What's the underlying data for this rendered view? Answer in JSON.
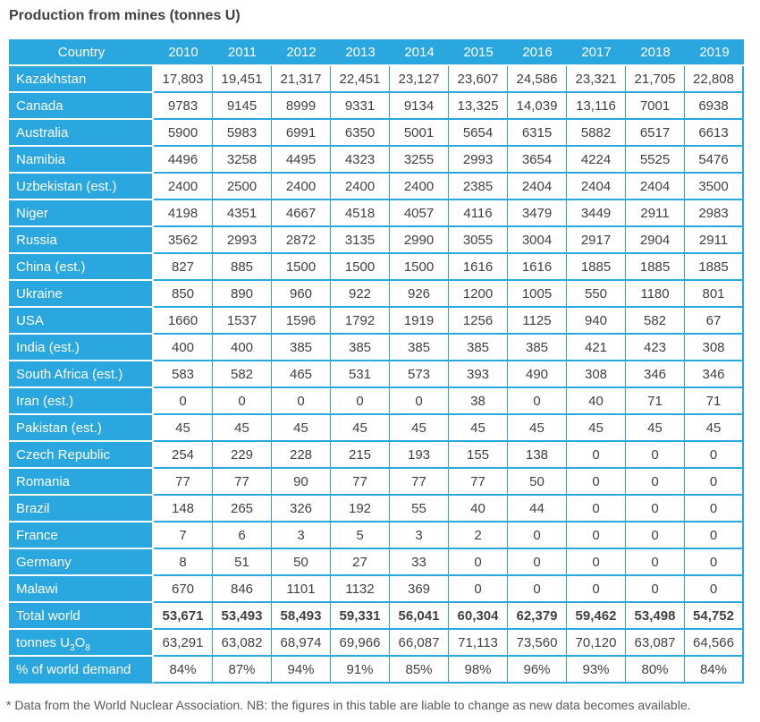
{
  "title": "Production from mines (tonnes U)",
  "footnote": "* Data from the World Nuclear Association. NB: the figures in this table are liable to change as new data becomes available.",
  "colors": {
    "accent_blue": "#2BA7DF",
    "header_text": "#FFFFFF",
    "body_text": "#414042",
    "footnote_text": "#58595B",
    "background": "#FFFFFF"
  },
  "chart_data": {
    "type": "table",
    "title": "Production from mines (tonnes U)",
    "unit": "tonnes U",
    "columns": [
      "Country",
      "2010",
      "2011",
      "2012",
      "2013",
      "2014",
      "2015",
      "2016",
      "2017",
      "2018",
      "2019"
    ],
    "rows": [
      {
        "label": "Kazakhstan",
        "values": [
          "17,803",
          "19,451",
          "21,317",
          "22,451",
          "23,127",
          "23,607",
          "24,586",
          "23,321",
          "21,705",
          "22,808"
        ]
      },
      {
        "label": "Canada",
        "values": [
          "9783",
          "9145",
          "8999",
          "9331",
          "9134",
          "13,325",
          "14,039",
          "13,116",
          "7001",
          "6938"
        ]
      },
      {
        "label": "Australia",
        "values": [
          "5900",
          "5983",
          "6991",
          "6350",
          "5001",
          "5654",
          "6315",
          "5882",
          "6517",
          "6613"
        ]
      },
      {
        "label": "Namibia",
        "values": [
          "4496",
          "3258",
          "4495",
          "4323",
          "3255",
          "2993",
          "3654",
          "4224",
          "5525",
          "5476"
        ]
      },
      {
        "label": "Uzbekistan (est.)",
        "values": [
          "2400",
          "2500",
          "2400",
          "2400",
          "2400",
          "2385",
          "2404",
          "2404",
          "2404",
          "3500"
        ]
      },
      {
        "label": "Niger",
        "values": [
          "4198",
          "4351",
          "4667",
          "4518",
          "4057",
          "4116",
          "3479",
          "3449",
          "2911",
          "2983"
        ]
      },
      {
        "label": "Russia",
        "values": [
          "3562",
          "2993",
          "2872",
          "3135",
          "2990",
          "3055",
          "3004",
          "2917",
          "2904",
          "2911"
        ]
      },
      {
        "label": "China (est.)",
        "values": [
          "827",
          "885",
          "1500",
          "1500",
          "1500",
          "1616",
          "1616",
          "1885",
          "1885",
          "1885"
        ]
      },
      {
        "label": "Ukraine",
        "values": [
          "850",
          "890",
          "960",
          "922",
          "926",
          "1200",
          "1005",
          "550",
          "1180",
          "801"
        ]
      },
      {
        "label": "USA",
        "values": [
          "1660",
          "1537",
          "1596",
          "1792",
          "1919",
          "1256",
          "1125",
          "940",
          "582",
          "67"
        ]
      },
      {
        "label": "India (est.)",
        "values": [
          "400",
          "400",
          "385",
          "385",
          "385",
          "385",
          "385",
          "421",
          "423",
          "308"
        ]
      },
      {
        "label": "South Africa (est.)",
        "values": [
          "583",
          "582",
          "465",
          "531",
          "573",
          "393",
          "490",
          "308",
          "346",
          "346"
        ]
      },
      {
        "label": "Iran (est.)",
        "values": [
          "0",
          "0",
          "0",
          "0",
          "0",
          "38",
          "0",
          "40",
          "71",
          "71"
        ]
      },
      {
        "label": "Pakistan (est.)",
        "values": [
          "45",
          "45",
          "45",
          "45",
          "45",
          "45",
          "45",
          "45",
          "45",
          "45"
        ]
      },
      {
        "label": "Czech Republic",
        "values": [
          "254",
          "229",
          "228",
          "215",
          "193",
          "155",
          "138",
          "0",
          "0",
          "0"
        ]
      },
      {
        "label": "Romania",
        "values": [
          "77",
          "77",
          "90",
          "77",
          "77",
          "77",
          "50",
          "0",
          "0",
          "0"
        ]
      },
      {
        "label": "Brazil",
        "values": [
          "148",
          "265",
          "326",
          "192",
          "55",
          "40",
          "44",
          "0",
          "0",
          "0"
        ]
      },
      {
        "label": "France",
        "values": [
          "7",
          "6",
          "3",
          "5",
          "3",
          "2",
          "0",
          "0",
          "0",
          "0"
        ]
      },
      {
        "label": "Germany",
        "values": [
          "8",
          "51",
          "50",
          "27",
          "33",
          "0",
          "0",
          "0",
          "0",
          "0"
        ]
      },
      {
        "label": "Malawi",
        "values": [
          "670",
          "846",
          "1101",
          "1132",
          "369",
          "0",
          "0",
          "0",
          "0",
          "0"
        ]
      },
      {
        "label": "Total world",
        "bold_values": true,
        "values": [
          "53,671",
          "53,493",
          "58,493",
          "59,331",
          "56,041",
          "60,304",
          "62,379",
          "59,462",
          "53,498",
          "54,752"
        ]
      },
      {
        "label": "tonnes U3O8",
        "label_parts": [
          {
            "text": "tonnes U"
          },
          {
            "sub": "3"
          },
          {
            "text": "O"
          },
          {
            "sub": "8"
          }
        ],
        "values": [
          "63,291",
          "63,082",
          "68,974",
          "69,966",
          "66,087",
          "71,113",
          "73,560",
          "70,120",
          "63,087",
          "64,566"
        ]
      },
      {
        "label": "% of world demand",
        "values": [
          "84%",
          "87%",
          "94%",
          "91%",
          "85%",
          "98%",
          "96%",
          "93%",
          "80%",
          "84%"
        ]
      }
    ]
  }
}
